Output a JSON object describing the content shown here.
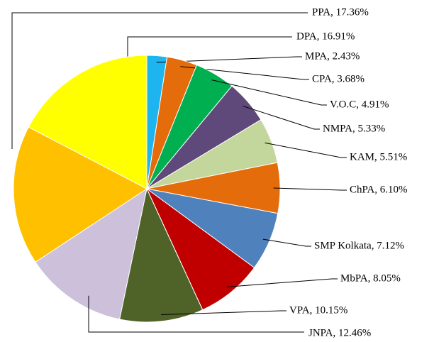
{
  "chart_data": {
    "type": "pie",
    "values": [
      2.43,
      3.68,
      4.91,
      5.33,
      5.51,
      6.1,
      7.12,
      8.05,
      10.15,
      12.46,
      16.91,
      17.36
    ],
    "value_labels": [
      "MPA, 2.43%",
      "CPA, 3.68%",
      "V.O.C, 4.91%",
      "NMPA, 5.33%",
      "KAM, 5.51%",
      "ChPA, 6.10%",
      "SMP Kolkata, 7.12%",
      "MbPA, 8.05%",
      "VPA, 10.15%",
      "JNPA, 12.46%",
      "DPA, 16.91%",
      "PPA, 17.36%"
    ],
    "colors": [
      "#1eb4f0",
      "#e46c0a",
      "#00b050",
      "#5f497a",
      "#c3d69b",
      "#e46c0a",
      "#4f81bd",
      "#c00000",
      "#4f6228",
      "#ccc0da",
      "#ffc000",
      "#ffff00"
    ]
  }
}
